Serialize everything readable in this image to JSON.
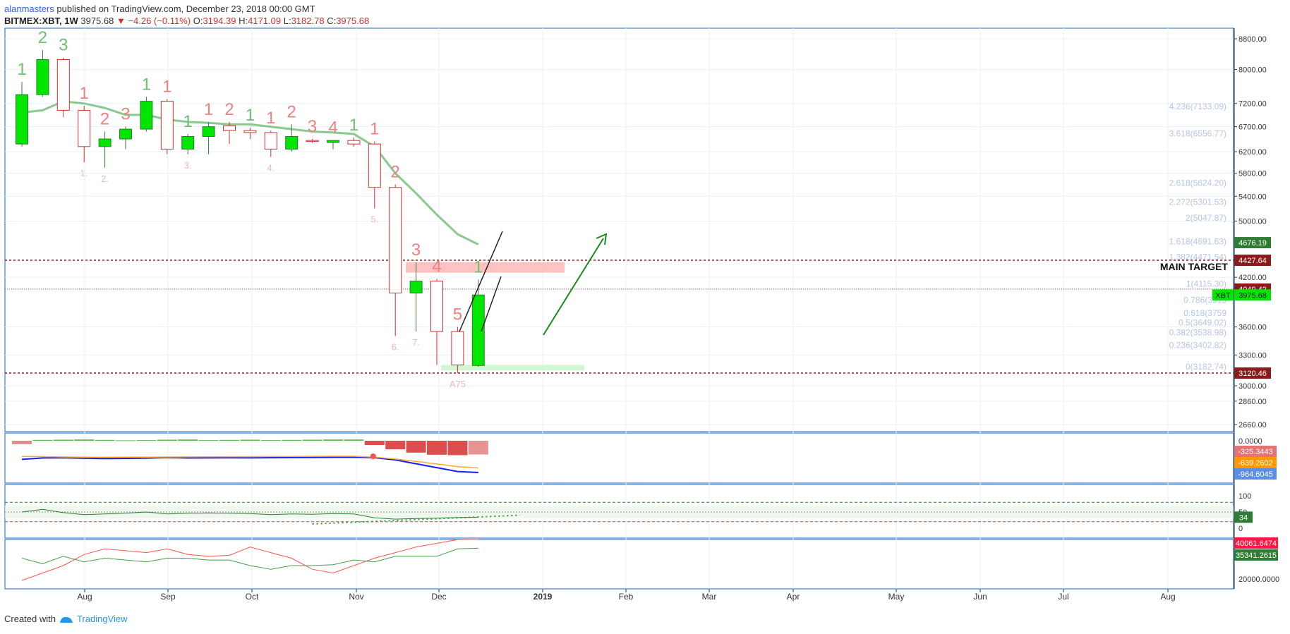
{
  "header": {
    "author": "alanmasters",
    "published": " published on TradingView.com, December 23, 2018 00:00 GMT",
    "symbol": "BITMEX:XBT, 1W",
    "last": "3975.68",
    "change": "▼ −4.26 (−0.11%)",
    "o_label": "O:",
    "o": "3194.39",
    "h_label": "H:",
    "h": "4171.09",
    "l_label": "L:",
    "l": "3182.78",
    "c_label": "C:",
    "c": "3975.68"
  },
  "footer": {
    "created": "Created with",
    "brand": "TradingView"
  },
  "colors": {
    "up": "#00e600",
    "down": "#ffffff",
    "down_border": "#d32f2f",
    "ma": "#7dc383",
    "grid": "#e8f0f8",
    "axis": "#1565c0",
    "seq_up": "#6fbf73",
    "seq_down": "#f08080"
  },
  "chart_data": {
    "type": "candlestick",
    "title": "",
    "price_axis": {
      "ticks": [
        "8800.00",
        "8000.00",
        "7200.00",
        "6700.00",
        "6200.00",
        "5800.00",
        "5400.00",
        "5000.00",
        "4200.00",
        "3600.00",
        "3300.00",
        "3000.00",
        "2860.00",
        "2660.00"
      ]
    },
    "time_axis": {
      "labels": [
        "Aug",
        "Sep",
        "Oct",
        "Nov",
        "Dec",
        "2019",
        "Feb",
        "Mar",
        "Apr",
        "May",
        "Jun",
        "Jul",
        "Aug"
      ]
    },
    "candles": [
      {
        "o": 6350,
        "h": 7700,
        "l": 6300,
        "c": 7400
      },
      {
        "o": 7400,
        "h": 8500,
        "l": 7350,
        "c": 8250
      },
      {
        "o": 8250,
        "h": 8300,
        "l": 6900,
        "c": 7050
      },
      {
        "o": 7050,
        "h": 7150,
        "l": 6000,
        "c": 6300
      },
      {
        "o": 6300,
        "h": 6600,
        "l": 5900,
        "c": 6450
      },
      {
        "o": 6450,
        "h": 6700,
        "l": 6250,
        "c": 6650
      },
      {
        "o": 6650,
        "h": 7350,
        "l": 6600,
        "c": 7250
      },
      {
        "o": 7250,
        "h": 7300,
        "l": 6150,
        "c": 6250
      },
      {
        "o": 6250,
        "h": 6550,
        "l": 6150,
        "c": 6500
      },
      {
        "o": 6500,
        "h": 6800,
        "l": 6150,
        "c": 6700
      },
      {
        "o": 6720,
        "h": 6800,
        "l": 6350,
        "c": 6620
      },
      {
        "o": 6620,
        "h": 6680,
        "l": 6450,
        "c": 6580
      },
      {
        "o": 6580,
        "h": 6620,
        "l": 6100,
        "c": 6250
      },
      {
        "o": 6250,
        "h": 6750,
        "l": 6200,
        "c": 6500
      },
      {
        "o": 6420,
        "h": 6450,
        "l": 6370,
        "c": 6400
      },
      {
        "o": 6380,
        "h": 6430,
        "l": 6250,
        "c": 6420
      },
      {
        "o": 6420,
        "h": 6480,
        "l": 6300,
        "c": 6350
      },
      {
        "o": 6350,
        "h": 6400,
        "l": 5200,
        "c": 5550
      },
      {
        "o": 5550,
        "h": 5600,
        "l": 3500,
        "c": 4000
      },
      {
        "o": 4000,
        "h": 4400,
        "l": 3550,
        "c": 4150
      },
      {
        "o": 4150,
        "h": 4180,
        "l": 3200,
        "c": 3550
      },
      {
        "o": 3550,
        "h": 3600,
        "l": 3120,
        "c": 3200
      },
      {
        "o": 3194.39,
        "h": 4171.09,
        "l": 3182.78,
        "c": 3975.68
      }
    ],
    "ma_values": [
      7000,
      7050,
      7250,
      7200,
      7100,
      6950,
      6950,
      6850,
      6800,
      6780,
      6750,
      6750,
      6700,
      6650,
      6600,
      6580,
      6550,
      6300,
      5800,
      5450,
      5100,
      4800,
      4650
    ],
    "sequential_labels": [
      {
        "i": 0,
        "t": "1",
        "kind": "up"
      },
      {
        "i": 1,
        "t": "2",
        "kind": "up"
      },
      {
        "i": 2,
        "t": "3",
        "kind": "up"
      },
      {
        "i": 3,
        "t": "1",
        "kind": "down"
      },
      {
        "i": 4,
        "t": "2",
        "kind": "down"
      },
      {
        "i": 5,
        "t": "3",
        "kind": "down"
      },
      {
        "i": 6,
        "t": "1",
        "kind": "up"
      },
      {
        "i": 7,
        "t": "1",
        "kind": "down"
      },
      {
        "i": 8,
        "t": "1",
        "kind": "up"
      },
      {
        "i": 9,
        "t": "1",
        "kind": "down"
      },
      {
        "i": 10,
        "t": "2",
        "kind": "down"
      },
      {
        "i": 11,
        "t": "1",
        "kind": "up"
      },
      {
        "i": 12,
        "t": "1",
        "kind": "down"
      },
      {
        "i": 13,
        "t": "2",
        "kind": "down"
      },
      {
        "i": 14,
        "t": "3",
        "kind": "down"
      },
      {
        "i": 15,
        "t": "4",
        "kind": "down"
      },
      {
        "i": 16,
        "t": "1",
        "kind": "up"
      },
      {
        "i": 17,
        "t": "1",
        "kind": "down"
      },
      {
        "i": 18,
        "t": "2",
        "kind": "down"
      },
      {
        "i": 19,
        "t": "3",
        "kind": "down"
      },
      {
        "i": 20,
        "t": "4",
        "kind": "down"
      },
      {
        "i": 21,
        "t": "5",
        "kind": "down"
      },
      {
        "i": 22,
        "t": "1",
        "kind": "up"
      }
    ],
    "small_labels": [
      {
        "i": 3,
        "t": "1."
      },
      {
        "i": 4,
        "t": "2."
      },
      {
        "i": 8,
        "t": "3."
      },
      {
        "i": 12,
        "t": "4."
      },
      {
        "i": 17,
        "t": "5."
      },
      {
        "i": 18,
        "t": "6."
      },
      {
        "i": 19,
        "t": "7."
      },
      {
        "i": 21,
        "t": "A75"
      }
    ],
    "fib_levels": [
      {
        "label": "4.236(7133.09)",
        "v": 7133.09
      },
      {
        "label": "3.618(6556.77)",
        "v": 6556.77
      },
      {
        "label": "2.618(5624.20)",
        "v": 5624.2
      },
      {
        "label": "2.272(5301.53)",
        "v": 5301.53
      },
      {
        "label": "2(5047.87)",
        "v": 5047.87
      },
      {
        "label": "1.618(4691.63)",
        "v": 4691.63
      },
      {
        "label": "1.382(4471.54)",
        "v": 4471.54
      },
      {
        "label": "1(4115.30)",
        "v": 4115.3
      },
      {
        "label": "0.786(3915",
        "v": 3915
      },
      {
        "label": "0.618(3759",
        "v": 3759
      },
      {
        "label": "0.5(3649.02)",
        "v": 3649.02
      },
      {
        "label": "0.382(3538.98)",
        "v": 3538.98
      },
      {
        "label": "0.236(3402.82)",
        "v": 3402.82
      },
      {
        "label": "0(3182.74)",
        "v": 3182.74
      }
    ],
    "levels": {
      "main_target": 4427.64,
      "main_target_label": "MAIN TARGET",
      "support": 3120.46,
      "level_4049": 4049.42,
      "ma_last": 4676.19
    },
    "price_badges": [
      {
        "t": "4676.19",
        "v": 4676.19,
        "color": "#2e7d32"
      },
      {
        "t": "4427.64",
        "v": 4427.64,
        "color": "#8b1a1a"
      },
      {
        "t": "4049.42",
        "v": 4049.42,
        "color": "#8b1a1a"
      },
      {
        "t": "3975.68",
        "v": 3975.68,
        "color": "#00e600",
        "prefix": "XBT"
      },
      {
        "t": "3120.46",
        "v": 3120.46,
        "color": "#8b1a1a"
      }
    ],
    "macd": {
      "axis_label": "0.0000",
      "badges": [
        {
          "t": "-325.3443",
          "color": "#e57373"
        },
        {
          "t": "-639.2602",
          "color": "#ff9800"
        },
        {
          "t": "-964.6045",
          "color": "#5c8ee6"
        }
      ],
      "hist": [
        -80,
        20,
        25,
        30,
        20,
        10,
        15,
        25,
        30,
        15,
        20,
        25,
        15,
        20,
        25,
        30,
        30,
        -100,
        -200,
        -280,
        -330,
        -340,
        -325
      ],
      "macd_line": [
        -120,
        -20,
        -5,
        -40,
        -60,
        -50,
        -30,
        10,
        -20,
        -15,
        -5,
        -10,
        0,
        10,
        20,
        30,
        40,
        0,
        -150,
        -400,
        -650,
        -900,
        -964
      ],
      "signal_line": [
        -10,
        -20,
        -40,
        -50,
        -55,
        -50,
        -45,
        -40,
        -35,
        -30,
        -25,
        -20,
        -15,
        -10,
        -5,
        0,
        0,
        -50,
        -150,
        -280,
        -420,
        -560,
        -639
      ]
    },
    "rsi": {
      "axis": [
        "100",
        "50",
        "0"
      ],
      "badge": "34",
      "values": [
        50,
        58,
        48,
        42,
        44,
        46,
        50,
        44,
        46,
        47,
        46,
        45,
        42,
        44,
        43,
        45,
        44,
        32,
        28,
        30,
        31,
        33,
        34
      ]
    },
    "dmi": {
      "axis_label": "20000.0000",
      "badges": [
        {
          "t": "40061.6474",
          "color": "#ff1744"
        },
        {
          "t": "35341.2615",
          "color": "#2e7d32"
        }
      ],
      "red": [
        18000,
        22000,
        26000,
        32000,
        35000,
        34000,
        33000,
        35000,
        32000,
        31000,
        31500,
        36000,
        33000,
        30000,
        24000,
        22000,
        26000,
        30000,
        33000,
        36000,
        38000,
        40000,
        40061
      ],
      "green": [
        30000,
        27000,
        31000,
        28000,
        30000,
        29000,
        28000,
        30000,
        30000,
        29000,
        29000,
        26000,
        24000,
        26000,
        26000,
        26500,
        29000,
        28000,
        31000,
        31000,
        31000,
        35000,
        35341
      ]
    }
  }
}
